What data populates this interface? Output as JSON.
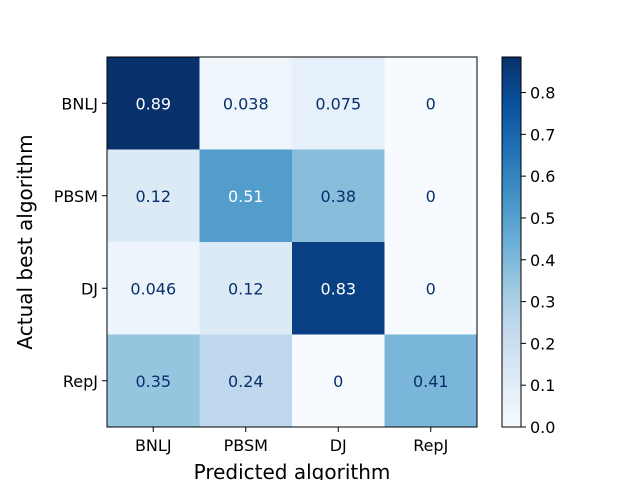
{
  "chart_data": {
    "type": "heatmap",
    "title": "",
    "xlabel": "Predicted algorithm",
    "ylabel": "Actual best algorithm",
    "x_categories": [
      "BNLJ",
      "PBSM",
      "DJ",
      "RepJ"
    ],
    "y_categories": [
      "BNLJ",
      "PBSM",
      "DJ",
      "RepJ"
    ],
    "values": [
      [
        0.89,
        0.038,
        0.075,
        0
      ],
      [
        0.12,
        0.51,
        0.38,
        0
      ],
      [
        0.046,
        0.12,
        0.83,
        0
      ],
      [
        0.35,
        0.24,
        0,
        0.41
      ]
    ],
    "value_labels": [
      [
        "0.89",
        "0.038",
        "0.075",
        "0"
      ],
      [
        "0.12",
        "0.51",
        "0.38",
        "0"
      ],
      [
        "0.046",
        "0.12",
        "0.83",
        "0"
      ],
      [
        "0.35",
        "0.24",
        "0",
        "0.41"
      ]
    ],
    "colormap": "Blues",
    "colorbar": {
      "min": 0.0,
      "max": 0.885,
      "ticks": [
        0.0,
        0.1,
        0.2,
        0.3,
        0.4,
        0.5,
        0.6,
        0.7,
        0.8
      ],
      "tick_labels": [
        "0.0",
        "0.1",
        "0.2",
        "0.3",
        "0.4",
        "0.5",
        "0.6",
        "0.7",
        "0.8"
      ]
    },
    "grid": false,
    "legend": "colorbar-right",
    "colors": {
      "dark_text": "#08306b",
      "light_text": "#ffffff"
    }
  }
}
